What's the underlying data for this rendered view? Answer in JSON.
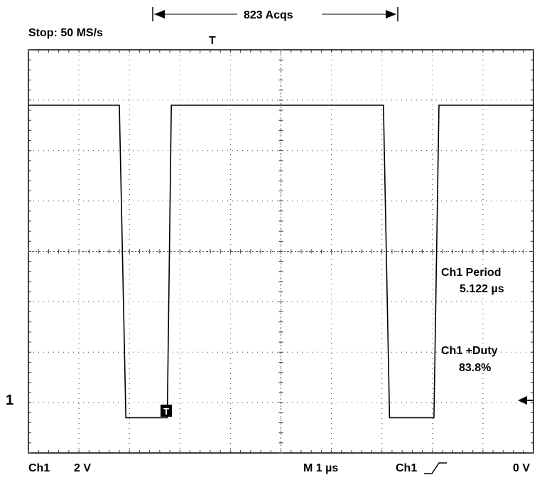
{
  "header": {
    "status": "Stop: 50 MS/s",
    "acquisitions": "823 Acqs",
    "trigger_position_marker": "T"
  },
  "footer": {
    "channel": "Ch1",
    "volts_per_div": "2 V",
    "timebase": "M 1 µs",
    "trigger_source": "Ch1",
    "trigger_level": "0 V"
  },
  "chart_data": {
    "type": "line",
    "title": "",
    "xlabel": "",
    "ylabel": "",
    "grid": true,
    "divisions": {
      "x": 10,
      "y": 8
    },
    "x_unit_per_div": "1 µs",
    "y_unit_per_div": "2 V",
    "xlim_us": [
      -5,
      5
    ],
    "ylim_v": [
      -8,
      8
    ],
    "series": [
      {
        "x_us": [
          -5.0,
          -3.2,
          -3.07,
          -2.25,
          -2.17,
          2.03,
          2.15,
          3.03,
          3.13,
          5.0
        ],
        "y_v": [
          5.8,
          5.8,
          -6.6,
          -6.6,
          5.8,
          5.8,
          -6.6,
          -6.6,
          5.8,
          5.8
        ]
      }
    ],
    "channel_marker": {
      "label": "1",
      "level_v": -6.0
    },
    "trigger_level_arrow_v": -6.0,
    "trigger_marker_label": "T",
    "trigger_marker_x_us": -2.1,
    "measurements": [
      {
        "label": "Ch1 Period",
        "value": "5.122 µs"
      },
      {
        "label": "Ch1 +Duty",
        "value": "83.8%"
      }
    ],
    "line_color": "#000000",
    "background_color": "#ffffff"
  }
}
